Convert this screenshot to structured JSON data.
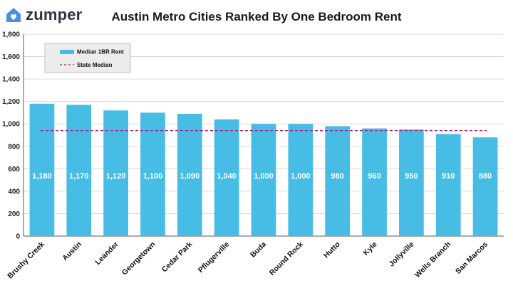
{
  "brand": {
    "name": "zumper",
    "logo_icon": "house-heart-icon",
    "accent": "#4a90e2"
  },
  "chart_data": {
    "type": "bar",
    "title": "Austin Metro Cities Ranked By One Bedroom Rent",
    "categories": [
      "Brushy Creek",
      "Austin",
      "Leander",
      "Georgetown",
      "Cedar Park",
      "Pflugerville",
      "Buda",
      "Round Rock",
      "Hutto",
      "Kyle",
      "Jollyville",
      "Wells Branch",
      "San Marcos"
    ],
    "series": [
      {
        "name": "Median 1BR Rent",
        "values": [
          1180,
          1170,
          1120,
          1100,
          1090,
          1040,
          1000,
          1000,
          980,
          960,
          950,
          910,
          880
        ],
        "color": "#47bde6"
      }
    ],
    "value_labels": [
      "1,180",
      "1,170",
      "1,120",
      "1,100",
      "1,090",
      "1,040",
      "1,000",
      "1,000",
      "980",
      "960",
      "950",
      "910",
      "880"
    ],
    "reference_line": {
      "name": "State Median",
      "value": 940,
      "style": "dashed",
      "color": "#b0207a"
    },
    "ylim": [
      0,
      1800
    ],
    "yticks": [
      0,
      200,
      400,
      600,
      800,
      1000,
      1200,
      1400,
      1600,
      1800
    ],
    "ytick_labels": [
      "0",
      "200",
      "400",
      "600",
      "800",
      "1,000",
      "1,200",
      "1,400",
      "1,600",
      "1,800"
    ],
    "grid": true,
    "legend_position": "top-left",
    "xlabel": "",
    "ylabel": ""
  }
}
